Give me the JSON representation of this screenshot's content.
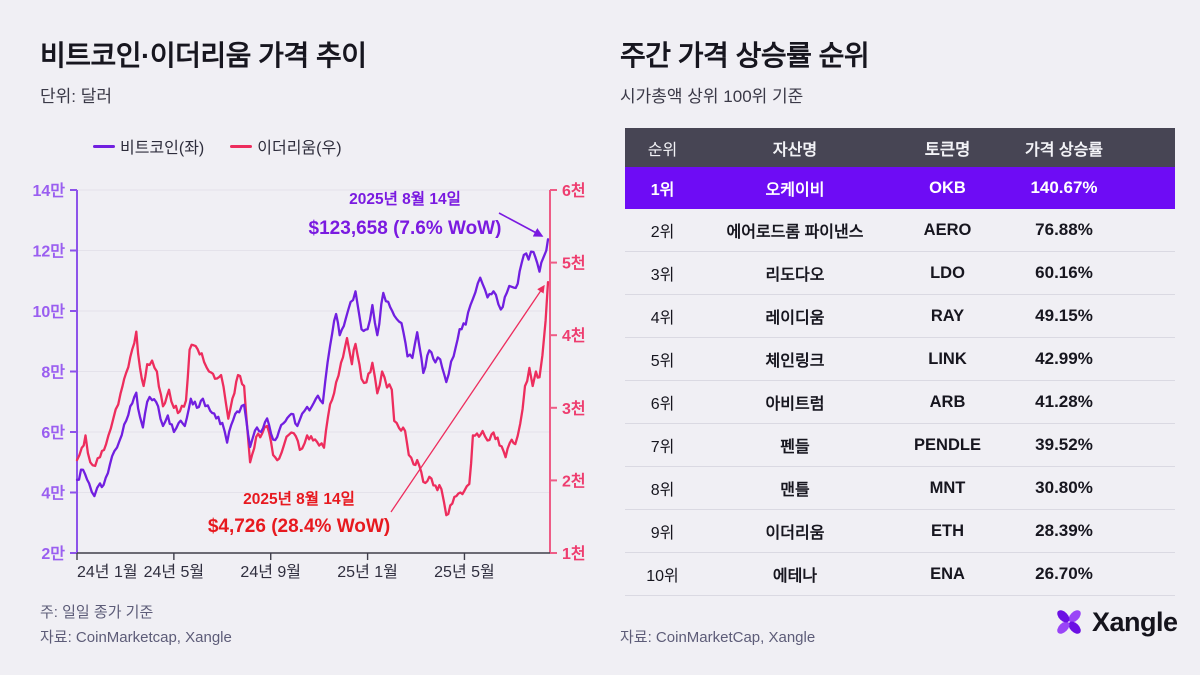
{
  "left_panel": {
    "title": "비트코인·이더리움 가격 추이",
    "subtitle": "단위: 달러",
    "note": "주: 일일 종가 기준",
    "source": "자료: CoinMarketcap, Xangle"
  },
  "right_panel": {
    "title": "주간 가격 상승률 순위",
    "subtitle": "시가총액 상위 100위 기준",
    "source": "자료: CoinMarketCap, Xangle",
    "logo_text": "Xangle",
    "table": {
      "headers": [
        "순위",
        "자산명",
        "토큰명",
        "가격 상승률"
      ],
      "rows": [
        {
          "rank": "1위",
          "asset": "오케이비",
          "token": "OKB",
          "change": "140.67%",
          "highlight": true
        },
        {
          "rank": "2위",
          "asset": "에어로드롬 파이낸스",
          "token": "AERO",
          "change": "76.88%",
          "highlight": false
        },
        {
          "rank": "3위",
          "asset": "리도다오",
          "token": "LDO",
          "change": "60.16%",
          "highlight": false
        },
        {
          "rank": "4위",
          "asset": "레이디움",
          "token": "RAY",
          "change": "49.15%",
          "highlight": false
        },
        {
          "rank": "5위",
          "asset": "체인링크",
          "token": "LINK",
          "change": "42.99%",
          "highlight": false
        },
        {
          "rank": "6위",
          "asset": "아비트럼",
          "token": "ARB",
          "change": "41.28%",
          "highlight": false
        },
        {
          "rank": "7위",
          "asset": "펜들",
          "token": "PENDLE",
          "change": "39.52%",
          "highlight": false
        },
        {
          "rank": "8위",
          "asset": "맨틀",
          "token": "MNT",
          "change": "30.80%",
          "highlight": false
        },
        {
          "rank": "9위",
          "asset": "이더리움",
          "token": "ETH",
          "change": "28.39%",
          "highlight": false
        },
        {
          "rank": "10위",
          "asset": "에테나",
          "token": "ENA",
          "change": "26.70%",
          "highlight": false
        }
      ],
      "highlight_color": "#6e0cf5",
      "header_bg": "#474554"
    }
  },
  "chart_data": {
    "type": "line",
    "title": "비트코인·이더리움 가격 추이",
    "unit": "달러",
    "grid": true,
    "legend_position": "top-left",
    "legend": [
      {
        "name": "비트코인(좌)",
        "color": "#711fe0"
      },
      {
        "name": "이더리움(우)",
        "color": "#ed2d5d"
      }
    ],
    "x_ticks": [
      "24년 1월",
      "24년 5월",
      "24년 9월",
      "25년 1월",
      "25년 5월"
    ],
    "x_tick_months": [
      0,
      4,
      8,
      12,
      16
    ],
    "x_range_months": [
      0,
      19.45
    ],
    "left_axis": {
      "labels": [
        "14만",
        "12만",
        "10만",
        "8만",
        "6만",
        "4만",
        "2만"
      ],
      "ylim": [
        2,
        14
      ],
      "unit": "만",
      "label_color": "#9a5ef0",
      "line_color": "#8d53ea"
    },
    "right_axis": {
      "labels": [
        "6천",
        "5천",
        "4천",
        "3천",
        "2천",
        "1천"
      ],
      "ylim": [
        1,
        6
      ],
      "unit": "천",
      "label_color": "#ee3d6f",
      "line_color": "#ee5c86"
    },
    "series": [
      {
        "name": "비트코인(좌)",
        "axis": "left",
        "color": "#711fe0",
        "points": [
          [
            0,
            4.42
          ],
          [
            0.25,
            4.75
          ],
          [
            0.5,
            4.3
          ],
          [
            0.72,
            3.88
          ],
          [
            0.95,
            4.3
          ],
          [
            1.1,
            4.25
          ],
          [
            1.45,
            5.2
          ],
          [
            1.75,
            5.7
          ],
          [
            1.95,
            6.25
          ],
          [
            2.2,
            6.85
          ],
          [
            2.45,
            7.3
          ],
          [
            2.6,
            6.5
          ],
          [
            2.72,
            6.15
          ],
          [
            2.9,
            7.0
          ],
          [
            3.1,
            7.05
          ],
          [
            3.35,
            6.85
          ],
          [
            3.55,
            6.2
          ],
          [
            3.75,
            6.55
          ],
          [
            4.0,
            6.0
          ],
          [
            4.2,
            6.3
          ],
          [
            4.45,
            6.2
          ],
          [
            4.7,
            7.1
          ],
          [
            4.95,
            6.8
          ],
          [
            5.2,
            7.1
          ],
          [
            5.5,
            6.7
          ],
          [
            5.75,
            6.45
          ],
          [
            6.0,
            6.3
          ],
          [
            6.2,
            5.65
          ],
          [
            6.45,
            6.4
          ],
          [
            6.7,
            6.65
          ],
          [
            6.9,
            6.9
          ],
          [
            7.15,
            5.5
          ],
          [
            7.35,
            6.05
          ],
          [
            7.6,
            6.0
          ],
          [
            7.85,
            6.45
          ],
          [
            8.1,
            5.75
          ],
          [
            8.35,
            6.05
          ],
          [
            8.6,
            6.35
          ],
          [
            8.85,
            6.6
          ],
          [
            9.1,
            6.2
          ],
          [
            9.4,
            6.7
          ],
          [
            9.7,
            6.85
          ],
          [
            9.95,
            7.2
          ],
          [
            10.15,
            6.95
          ],
          [
            10.45,
            8.85
          ],
          [
            10.7,
            9.9
          ],
          [
            10.85,
            9.2
          ],
          [
            11.1,
            9.75
          ],
          [
            11.5,
            10.65
          ],
          [
            11.75,
            9.4
          ],
          [
            12.0,
            9.4
          ],
          [
            12.2,
            10.2
          ],
          [
            12.4,
            9.2
          ],
          [
            12.65,
            10.6
          ],
          [
            12.85,
            10.3
          ],
          [
            13.1,
            9.85
          ],
          [
            13.4,
            9.6
          ],
          [
            13.65,
            8.5
          ],
          [
            13.85,
            8.45
          ],
          [
            14.05,
            9.3
          ],
          [
            14.3,
            7.95
          ],
          [
            14.55,
            8.7
          ],
          [
            14.8,
            8.3
          ],
          [
            15.0,
            8.4
          ],
          [
            15.25,
            7.65
          ],
          [
            15.55,
            8.5
          ],
          [
            15.8,
            9.4
          ],
          [
            16.05,
            9.55
          ],
          [
            16.35,
            10.4
          ],
          [
            16.65,
            11.1
          ],
          [
            16.95,
            10.45
          ],
          [
            17.2,
            10.65
          ],
          [
            17.5,
            10.05
          ],
          [
            17.75,
            10.6
          ],
          [
            17.95,
            10.8
          ],
          [
            18.2,
            10.9
          ],
          [
            18.45,
            11.85
          ],
          [
            18.65,
            11.7
          ],
          [
            18.85,
            11.95
          ],
          [
            19.0,
            11.6
          ],
          [
            19.1,
            11.3
          ],
          [
            19.25,
            11.75
          ],
          [
            19.38,
            12.0
          ],
          [
            19.45,
            12.37
          ]
        ]
      },
      {
        "name": "이더리움(우)",
        "axis": "right",
        "color": "#ed2d5d",
        "points": [
          [
            0,
            2.28
          ],
          [
            0.2,
            2.45
          ],
          [
            0.35,
            2.62
          ],
          [
            0.55,
            2.25
          ],
          [
            0.75,
            2.2
          ],
          [
            0.95,
            2.32
          ],
          [
            1.2,
            2.5
          ],
          [
            1.5,
            2.85
          ],
          [
            1.8,
            3.2
          ],
          [
            1.95,
            3.4
          ],
          [
            2.2,
            3.7
          ],
          [
            2.45,
            4.05
          ],
          [
            2.6,
            3.55
          ],
          [
            2.75,
            3.3
          ],
          [
            2.9,
            3.6
          ],
          [
            3.1,
            3.65
          ],
          [
            3.3,
            3.5
          ],
          [
            3.55,
            3.02
          ],
          [
            3.8,
            3.25
          ],
          [
            4.0,
            3.0
          ],
          [
            4.25,
            2.95
          ],
          [
            4.5,
            3.1
          ],
          [
            4.65,
            3.8
          ],
          [
            4.9,
            3.85
          ],
          [
            5.15,
            3.75
          ],
          [
            5.45,
            3.5
          ],
          [
            5.7,
            3.4
          ],
          [
            5.95,
            3.45
          ],
          [
            6.25,
            2.85
          ],
          [
            6.5,
            3.2
          ],
          [
            6.65,
            3.45
          ],
          [
            6.9,
            3.3
          ],
          [
            7.15,
            2.25
          ],
          [
            7.4,
            2.6
          ],
          [
            7.65,
            2.65
          ],
          [
            7.85,
            2.75
          ],
          [
            8.1,
            2.35
          ],
          [
            8.35,
            2.3
          ],
          [
            8.65,
            2.6
          ],
          [
            8.95,
            2.65
          ],
          [
            9.2,
            2.42
          ],
          [
            9.5,
            2.62
          ],
          [
            9.75,
            2.55
          ],
          [
            10.0,
            2.48
          ],
          [
            10.2,
            2.45
          ],
          [
            10.45,
            3.05
          ],
          [
            10.7,
            3.35
          ],
          [
            10.9,
            3.62
          ],
          [
            11.15,
            3.96
          ],
          [
            11.35,
            3.6
          ],
          [
            11.5,
            3.88
          ],
          [
            11.75,
            3.4
          ],
          [
            11.95,
            3.35
          ],
          [
            12.2,
            3.62
          ],
          [
            12.4,
            3.2
          ],
          [
            12.6,
            3.5
          ],
          [
            12.8,
            3.28
          ],
          [
            13.0,
            3.25
          ],
          [
            13.1,
            2.82
          ],
          [
            13.3,
            2.72
          ],
          [
            13.55,
            2.68
          ],
          [
            13.7,
            2.35
          ],
          [
            13.9,
            2.22
          ],
          [
            14.05,
            2.28
          ],
          [
            14.3,
            1.98
          ],
          [
            14.55,
            2.05
          ],
          [
            14.8,
            1.93
          ],
          [
            15.05,
            1.88
          ],
          [
            15.25,
            1.52
          ],
          [
            15.5,
            1.68
          ],
          [
            15.75,
            1.82
          ],
          [
            16.0,
            1.86
          ],
          [
            16.2,
            1.95
          ],
          [
            16.35,
            2.62
          ],
          [
            16.6,
            2.6
          ],
          [
            16.75,
            2.68
          ],
          [
            16.95,
            2.55
          ],
          [
            17.2,
            2.66
          ],
          [
            17.45,
            2.48
          ],
          [
            17.7,
            2.32
          ],
          [
            17.95,
            2.56
          ],
          [
            18.1,
            2.5
          ],
          [
            18.3,
            2.78
          ],
          [
            18.5,
            3.3
          ],
          [
            18.68,
            3.55
          ],
          [
            18.82,
            3.3
          ],
          [
            18.95,
            3.5
          ],
          [
            19.1,
            3.42
          ],
          [
            19.22,
            3.72
          ],
          [
            19.35,
            4.2
          ],
          [
            19.45,
            4.73
          ]
        ]
      }
    ],
    "annotations": [
      {
        "target": "비트코인",
        "line1": "2025년 8월 14일",
        "line2": "$123,658 (7.6% WoW)",
        "color": "#7a1ae0"
      },
      {
        "target": "이더리움",
        "line1": "2025년 8월 14일",
        "line2": "$4,726 (28.4% WoW)",
        "color": "#e7191f",
        "arrow_color": "#ed2d5d"
      }
    ]
  }
}
